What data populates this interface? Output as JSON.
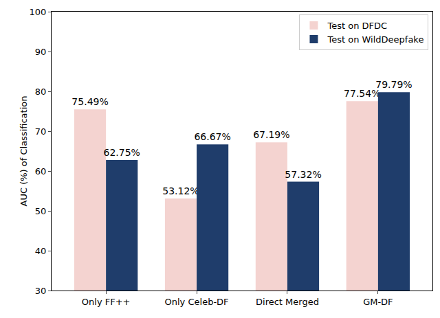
{
  "chart_data": {
    "type": "bar",
    "y_label": "AUC (%) of Classification",
    "categories": [
      "Only FF++",
      "Only Celeb-DF",
      "Direct Merged",
      "GM-DF"
    ],
    "series": [
      {
        "name": "Test on DFDC",
        "color": "#f4d3d0",
        "values": [
          75.49,
          53.12,
          67.19,
          77.54
        ],
        "value_labels": [
          "75.49%",
          "53.12%",
          "67.19%",
          "77.54%"
        ]
      },
      {
        "name": "Test on WildDeepfake",
        "color": "#1f3d6b",
        "values": [
          62.75,
          66.67,
          57.32,
          79.79
        ],
        "value_labels": [
          "62.75%",
          "66.67%",
          "57.32%",
          "79.79%"
        ]
      }
    ],
    "ylim": [
      30,
      100
    ],
    "yticks": [
      30,
      40,
      50,
      60,
      70,
      80,
      90,
      100
    ],
    "grid": false,
    "legend": "upper right",
    "data_labels": true
  }
}
